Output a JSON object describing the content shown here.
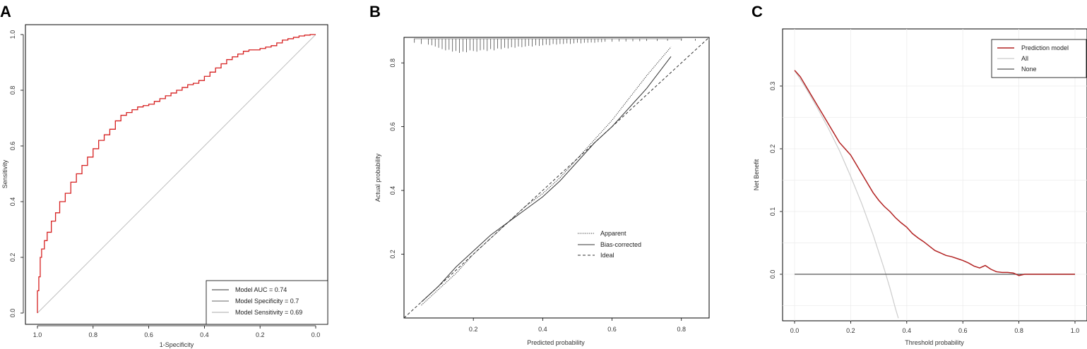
{
  "chart_data": [
    {
      "panel": "A",
      "type": "line",
      "xlabel": "1-Specificity",
      "ylabel": "Sensitivity",
      "xlim": [
        1.0,
        0.0
      ],
      "ylim": [
        0.0,
        1.0
      ],
      "x_ticks": [
        "1.0",
        "0.8",
        "0.6",
        "0.4",
        "0.2",
        "0.0"
      ],
      "y_ticks": [
        "0.0",
        "0.2",
        "0.4",
        "0.6",
        "0.8",
        "1.0"
      ],
      "legend_placement": "bottom-right",
      "legend": [
        "Model AUC = 0.74",
        "Model Specificity = 0.7",
        "Model Sensitivity = 0.69"
      ],
      "series": [
        {
          "name": "ROC",
          "color": "#d62020",
          "x": [
            1.0,
            0.995,
            0.99,
            0.985,
            0.975,
            0.965,
            0.95,
            0.935,
            0.92,
            0.9,
            0.88,
            0.86,
            0.84,
            0.82,
            0.8,
            0.78,
            0.76,
            0.74,
            0.72,
            0.7,
            0.68,
            0.66,
            0.64,
            0.62,
            0.6,
            0.58,
            0.56,
            0.54,
            0.52,
            0.5,
            0.48,
            0.46,
            0.44,
            0.42,
            0.4,
            0.38,
            0.36,
            0.34,
            0.32,
            0.3,
            0.28,
            0.26,
            0.24,
            0.22,
            0.2,
            0.18,
            0.16,
            0.14,
            0.12,
            0.1,
            0.08,
            0.06,
            0.04,
            0.02,
            0.0
          ],
          "y": [
            0.0,
            0.08,
            0.13,
            0.2,
            0.23,
            0.26,
            0.29,
            0.33,
            0.36,
            0.4,
            0.43,
            0.47,
            0.5,
            0.53,
            0.56,
            0.59,
            0.62,
            0.64,
            0.66,
            0.69,
            0.71,
            0.72,
            0.73,
            0.74,
            0.745,
            0.75,
            0.76,
            0.77,
            0.78,
            0.79,
            0.8,
            0.81,
            0.82,
            0.825,
            0.835,
            0.85,
            0.865,
            0.88,
            0.895,
            0.91,
            0.92,
            0.93,
            0.94,
            0.945,
            0.945,
            0.95,
            0.955,
            0.96,
            0.97,
            0.98,
            0.985,
            0.99,
            0.995,
            0.998,
            1.0
          ]
        },
        {
          "name": "Reference",
          "color": "#bfbfbf",
          "x": [
            1.0,
            0.0
          ],
          "y": [
            0.0,
            1.0
          ]
        }
      ]
    },
    {
      "panel": "B",
      "type": "line",
      "xlabel": "Predicted probability",
      "ylabel": "Actual probability",
      "xlim": [
        0.0,
        0.88
      ],
      "ylim": [
        0.0,
        0.88
      ],
      "x_ticks": [
        "0.2",
        "0.4",
        "0.6",
        "0.8"
      ],
      "y_ticks": [
        "0.2",
        "0.4",
        "0.6",
        "0.8"
      ],
      "legend_placement": "bottom-right",
      "legend": [
        "Apparent",
        "Bias-corrected",
        "Ideal"
      ],
      "series": [
        {
          "name": "Apparent",
          "x": [
            0.05,
            0.1,
            0.15,
            0.2,
            0.25,
            0.3,
            0.35,
            0.4,
            0.45,
            0.5,
            0.55,
            0.6,
            0.65,
            0.7,
            0.77
          ],
          "y": [
            0.04,
            0.09,
            0.14,
            0.2,
            0.25,
            0.3,
            0.35,
            0.39,
            0.44,
            0.5,
            0.56,
            0.62,
            0.69,
            0.76,
            0.85
          ]
        },
        {
          "name": "Bias-corrected",
          "x": [
            0.05,
            0.1,
            0.15,
            0.2,
            0.25,
            0.3,
            0.35,
            0.4,
            0.45,
            0.5,
            0.55,
            0.6,
            0.65,
            0.7,
            0.77
          ],
          "y": [
            0.05,
            0.1,
            0.16,
            0.21,
            0.26,
            0.3,
            0.34,
            0.38,
            0.43,
            0.49,
            0.55,
            0.6,
            0.66,
            0.72,
            0.82
          ]
        },
        {
          "name": "Ideal",
          "x": [
            0.0,
            0.88
          ],
          "y": [
            0.0,
            0.88
          ]
        }
      ],
      "rug_x": [
        0.03,
        0.05,
        0.07,
        0.08,
        0.09,
        0.1,
        0.11,
        0.12,
        0.13,
        0.14,
        0.15,
        0.16,
        0.17,
        0.18,
        0.19,
        0.2,
        0.21,
        0.22,
        0.23,
        0.24,
        0.25,
        0.26,
        0.27,
        0.28,
        0.29,
        0.3,
        0.31,
        0.32,
        0.33,
        0.34,
        0.35,
        0.36,
        0.37,
        0.38,
        0.39,
        0.4,
        0.41,
        0.42,
        0.43,
        0.44,
        0.45,
        0.46,
        0.47,
        0.48,
        0.49,
        0.5,
        0.51,
        0.52,
        0.53,
        0.54,
        0.55,
        0.56,
        0.57,
        0.58,
        0.6,
        0.62,
        0.64,
        0.66,
        0.68,
        0.7,
        0.73,
        0.76,
        0.8,
        0.84,
        0.88
      ],
      "rug_h": [
        0.2,
        0.3,
        0.35,
        0.4,
        0.5,
        0.6,
        0.7,
        0.8,
        0.75,
        0.9,
        0.85,
        1.0,
        0.9,
        0.95,
        0.8,
        0.85,
        0.9,
        0.8,
        0.75,
        0.85,
        0.7,
        0.8,
        0.65,
        0.7,
        0.6,
        0.65,
        0.55,
        0.6,
        0.5,
        0.55,
        0.5,
        0.45,
        0.5,
        0.4,
        0.45,
        0.4,
        0.35,
        0.4,
        0.3,
        0.35,
        0.3,
        0.3,
        0.25,
        0.3,
        0.25,
        0.2,
        0.25,
        0.2,
        0.2,
        0.18,
        0.2,
        0.15,
        0.15,
        0.12,
        0.12,
        0.1,
        0.1,
        0.08,
        0.08,
        0.06,
        0.06,
        0.05,
        0.05,
        0.04,
        0.04
      ]
    },
    {
      "panel": "C",
      "type": "line",
      "xlabel": "Threshold probability",
      "ylabel": "Net Benefit",
      "xlim": [
        0.0,
        1.0
      ],
      "ylim": [
        -0.07,
        0.345
      ],
      "x_ticks": [
        "0.0",
        "0.2",
        "0.4",
        "0.6",
        "0.8",
        "1.0"
      ],
      "y_ticks": [
        "0.0",
        "0.1",
        "0.2",
        "0.3"
      ],
      "grid": true,
      "legend_placement": "top-right",
      "legend": [
        "Prediction model",
        "All",
        "None"
      ],
      "series": [
        {
          "name": "Prediction model",
          "color": "#b22222",
          "x": [
            0.0,
            0.02,
            0.04,
            0.06,
            0.08,
            0.1,
            0.12,
            0.14,
            0.16,
            0.18,
            0.2,
            0.22,
            0.24,
            0.26,
            0.28,
            0.3,
            0.32,
            0.34,
            0.36,
            0.38,
            0.4,
            0.42,
            0.44,
            0.46,
            0.48,
            0.5,
            0.52,
            0.54,
            0.56,
            0.58,
            0.6,
            0.62,
            0.64,
            0.66,
            0.68,
            0.7,
            0.72,
            0.74,
            0.76,
            0.78,
            0.8,
            0.82,
            0.9,
            1.0
          ],
          "y": [
            0.325,
            0.315,
            0.3,
            0.285,
            0.27,
            0.255,
            0.24,
            0.225,
            0.21,
            0.2,
            0.19,
            0.175,
            0.16,
            0.145,
            0.13,
            0.118,
            0.108,
            0.1,
            0.09,
            0.082,
            0.075,
            0.065,
            0.058,
            0.052,
            0.045,
            0.038,
            0.034,
            0.03,
            0.028,
            0.025,
            0.022,
            0.018,
            0.013,
            0.01,
            0.014,
            0.008,
            0.004,
            0.003,
            0.003,
            0.002,
            -0.002,
            0.0,
            0.0,
            0.0
          ]
        },
        {
          "name": "All",
          "color": "#cccccc",
          "x": [
            0.0,
            0.04,
            0.08,
            0.12,
            0.16,
            0.2,
            0.24,
            0.28,
            0.32,
            0.34,
            0.36,
            0.37
          ],
          "y": [
            0.325,
            0.297,
            0.266,
            0.233,
            0.197,
            0.156,
            0.112,
            0.063,
            0.008,
            -0.022,
            -0.055,
            -0.07
          ]
        },
        {
          "name": "None",
          "color": "#555555",
          "x": [
            0.0,
            1.0
          ],
          "y": [
            0.0,
            0.0
          ]
        }
      ]
    }
  ]
}
